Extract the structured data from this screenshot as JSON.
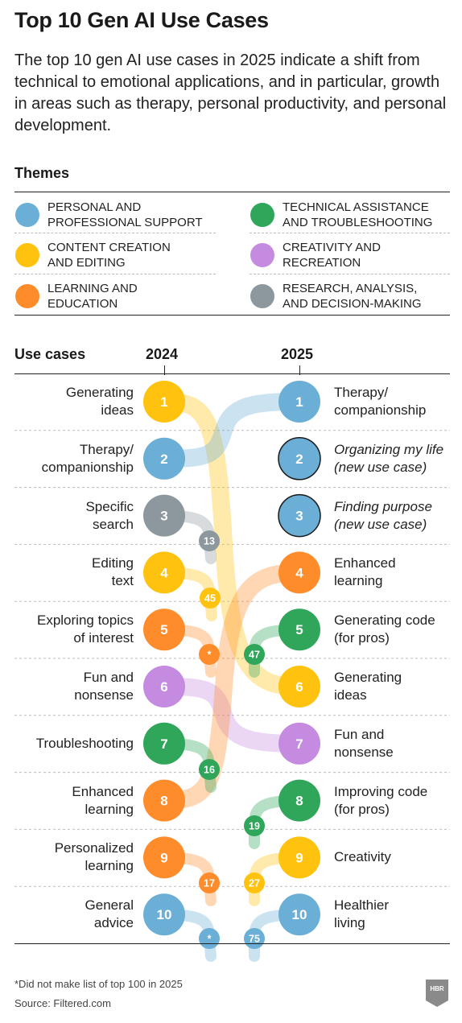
{
  "title": "Top 10 Gen AI Use Cases",
  "subtitle": "The top 10 gen AI use cases in 2025 indicate a shift from technical to emotional applications, and in particular, growth in areas such as therapy, personal productivity, and personal development.",
  "themes_heading": "Themes",
  "colors": {
    "support": "#6BAED6",
    "content": "#FFC20E",
    "learning": "#FF8C2A",
    "technical": "#2FA65A",
    "creativity": "#C58BE0",
    "research": "#8C979E"
  },
  "themes": [
    {
      "key": "support",
      "label": "PERSONAL AND\nPROFESSIONAL SUPPORT"
    },
    {
      "key": "technical",
      "label": "TECHNICAL ASSISTANCE\nAND TROUBLESHOOTING"
    },
    {
      "key": "content",
      "label": "CONTENT CREATION\nAND EDITING"
    },
    {
      "key": "creativity",
      "label": "CREATIVITY AND\nRECREATION"
    },
    {
      "key": "learning",
      "label": "LEARNING AND\nEDUCATION"
    },
    {
      "key": "research",
      "label": "RESEARCH, ANALYSIS,\nAND DECISION-MAKING"
    }
  ],
  "columns": {
    "use_cases": "Use cases",
    "left_year": "2024",
    "right_year": "2025"
  },
  "left": [
    {
      "rank": "1",
      "label": "Generating\nideas",
      "theme": "content",
      "rank2025": "6"
    },
    {
      "rank": "2",
      "label": "Therapy/\ncompanionship",
      "theme": "support",
      "rank2025": "1"
    },
    {
      "rank": "3",
      "label": "Specific\nsearch",
      "theme": "research",
      "rank2025": "13"
    },
    {
      "rank": "4",
      "label": "Editing\ntext",
      "theme": "content",
      "rank2025": "45"
    },
    {
      "rank": "5",
      "label": "Exploring topics\nof interest",
      "theme": "learning",
      "rank2025": "*"
    },
    {
      "rank": "6",
      "label": "Fun and\nnonsense",
      "theme": "creativity",
      "rank2025": "7"
    },
    {
      "rank": "7",
      "label": "Troubleshooting",
      "theme": "technical",
      "rank2025": "16"
    },
    {
      "rank": "8",
      "label": "Enhanced\nlearning",
      "theme": "learning",
      "rank2025": "4"
    },
    {
      "rank": "9",
      "label": "Personalized\nlearning",
      "theme": "learning",
      "rank2025": "17"
    },
    {
      "rank": "10",
      "label": "General\nadvice",
      "theme": "support",
      "rank2025": "*"
    }
  ],
  "right": [
    {
      "rank": "1",
      "label": "Therapy/\ncompanionship",
      "theme": "support",
      "new": false,
      "rank2024": "2"
    },
    {
      "rank": "2",
      "label": "Organizing my life\n(new use case)",
      "theme": "support",
      "new": true
    },
    {
      "rank": "3",
      "label": "Finding purpose\n(new use case)",
      "theme": "support",
      "new": true
    },
    {
      "rank": "4",
      "label": "Enhanced\nlearning",
      "theme": "learning",
      "new": false,
      "rank2024": "8"
    },
    {
      "rank": "5",
      "label": "Generating code\n(for pros)",
      "theme": "technical",
      "new": false,
      "rank2024": "47"
    },
    {
      "rank": "6",
      "label": "Generating\nideas",
      "theme": "content",
      "new": false,
      "rank2024": "1"
    },
    {
      "rank": "7",
      "label": "Fun and\nnonsense",
      "theme": "creativity",
      "new": false,
      "rank2024": "6"
    },
    {
      "rank": "8",
      "label": "Improving code\n(for pros)",
      "theme": "technical",
      "new": false,
      "rank2024": "19"
    },
    {
      "rank": "9",
      "label": "Creativity",
      "theme": "content",
      "new": false,
      "rank2024": "27"
    },
    {
      "rank": "10",
      "label": "Healthier\nliving",
      "theme": "support",
      "new": false,
      "rank2024": "75"
    }
  ],
  "footnote": "*Did not make list of top 100 in 2025",
  "source": "Source: Filtered.com",
  "logo_text": "HBR"
}
